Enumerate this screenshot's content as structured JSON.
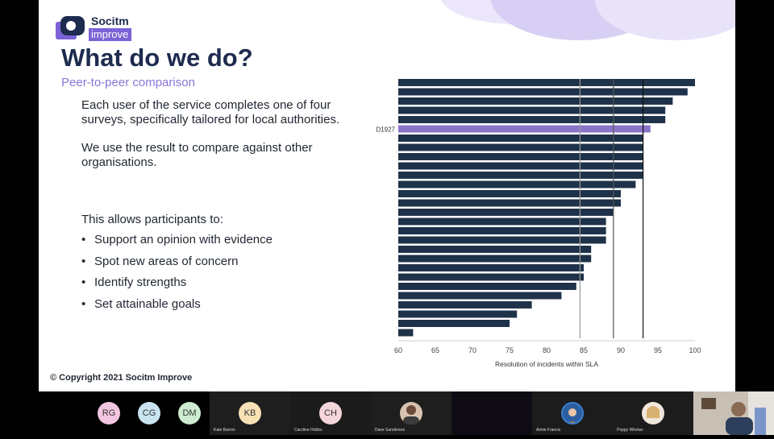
{
  "logo": {
    "line1": "Socitm",
    "line2": "improve"
  },
  "slide": {
    "title": "What do we do?",
    "subtitle": "Peer-to-peer comparison",
    "paragraph1": "Each user of the service completes one of four surveys, specifically tailored for local authorities.",
    "paragraph2": "We use the result to compare against other organisations.",
    "paragraph3": "This allows participants to:",
    "bullets": [
      "Support an opinion with evidence",
      "Spot new areas of concern",
      "Identify strengths",
      "Set attainable goals"
    ],
    "copyright": "© Copyright 2021 Socitm Improve"
  },
  "colors": {
    "navy": "#1d2b4f",
    "purple": "#8a74d8",
    "bar": "#1e3249",
    "highlight": "#8a74c9"
  },
  "chart_data": {
    "type": "bar",
    "orientation": "horizontal",
    "xlabel": "Resolution of incidents within SLA",
    "xlim": [
      60,
      100
    ],
    "xticks": [
      60,
      65,
      70,
      75,
      80,
      85,
      90,
      95,
      100
    ],
    "highlight_label": "D1927",
    "highlight_index": 5,
    "values": [
      100,
      99,
      97,
      96,
      96,
      94,
      93,
      93,
      93,
      93,
      93,
      92,
      90,
      90,
      89,
      88,
      88,
      88,
      86,
      86,
      85,
      85,
      84,
      82,
      78,
      76,
      75,
      62
    ],
    "reference_lines": [
      84.5,
      89,
      93
    ]
  },
  "participants": [
    {
      "initials": "RG",
      "name": "",
      "color": "#f3c6e0"
    },
    {
      "initials": "CG",
      "name": "",
      "color": "#c7e3ef"
    },
    {
      "initials": "DM",
      "name": "",
      "color": "#cdeccf"
    },
    {
      "initials": "KB",
      "name": "Kate Barron",
      "color": "#f7e1b5"
    },
    {
      "initials": "CH",
      "name": "Caroline Hobbs",
      "color": "#f4d5da"
    },
    {
      "initials": "",
      "name": "Dave Sanderson",
      "color": ""
    },
    {
      "initials": "",
      "name": "",
      "color": ""
    },
    {
      "initials": "",
      "name": "Aimie Francis",
      "color": ""
    },
    {
      "initials": "",
      "name": "Poppy Whelan",
      "color": ""
    }
  ]
}
